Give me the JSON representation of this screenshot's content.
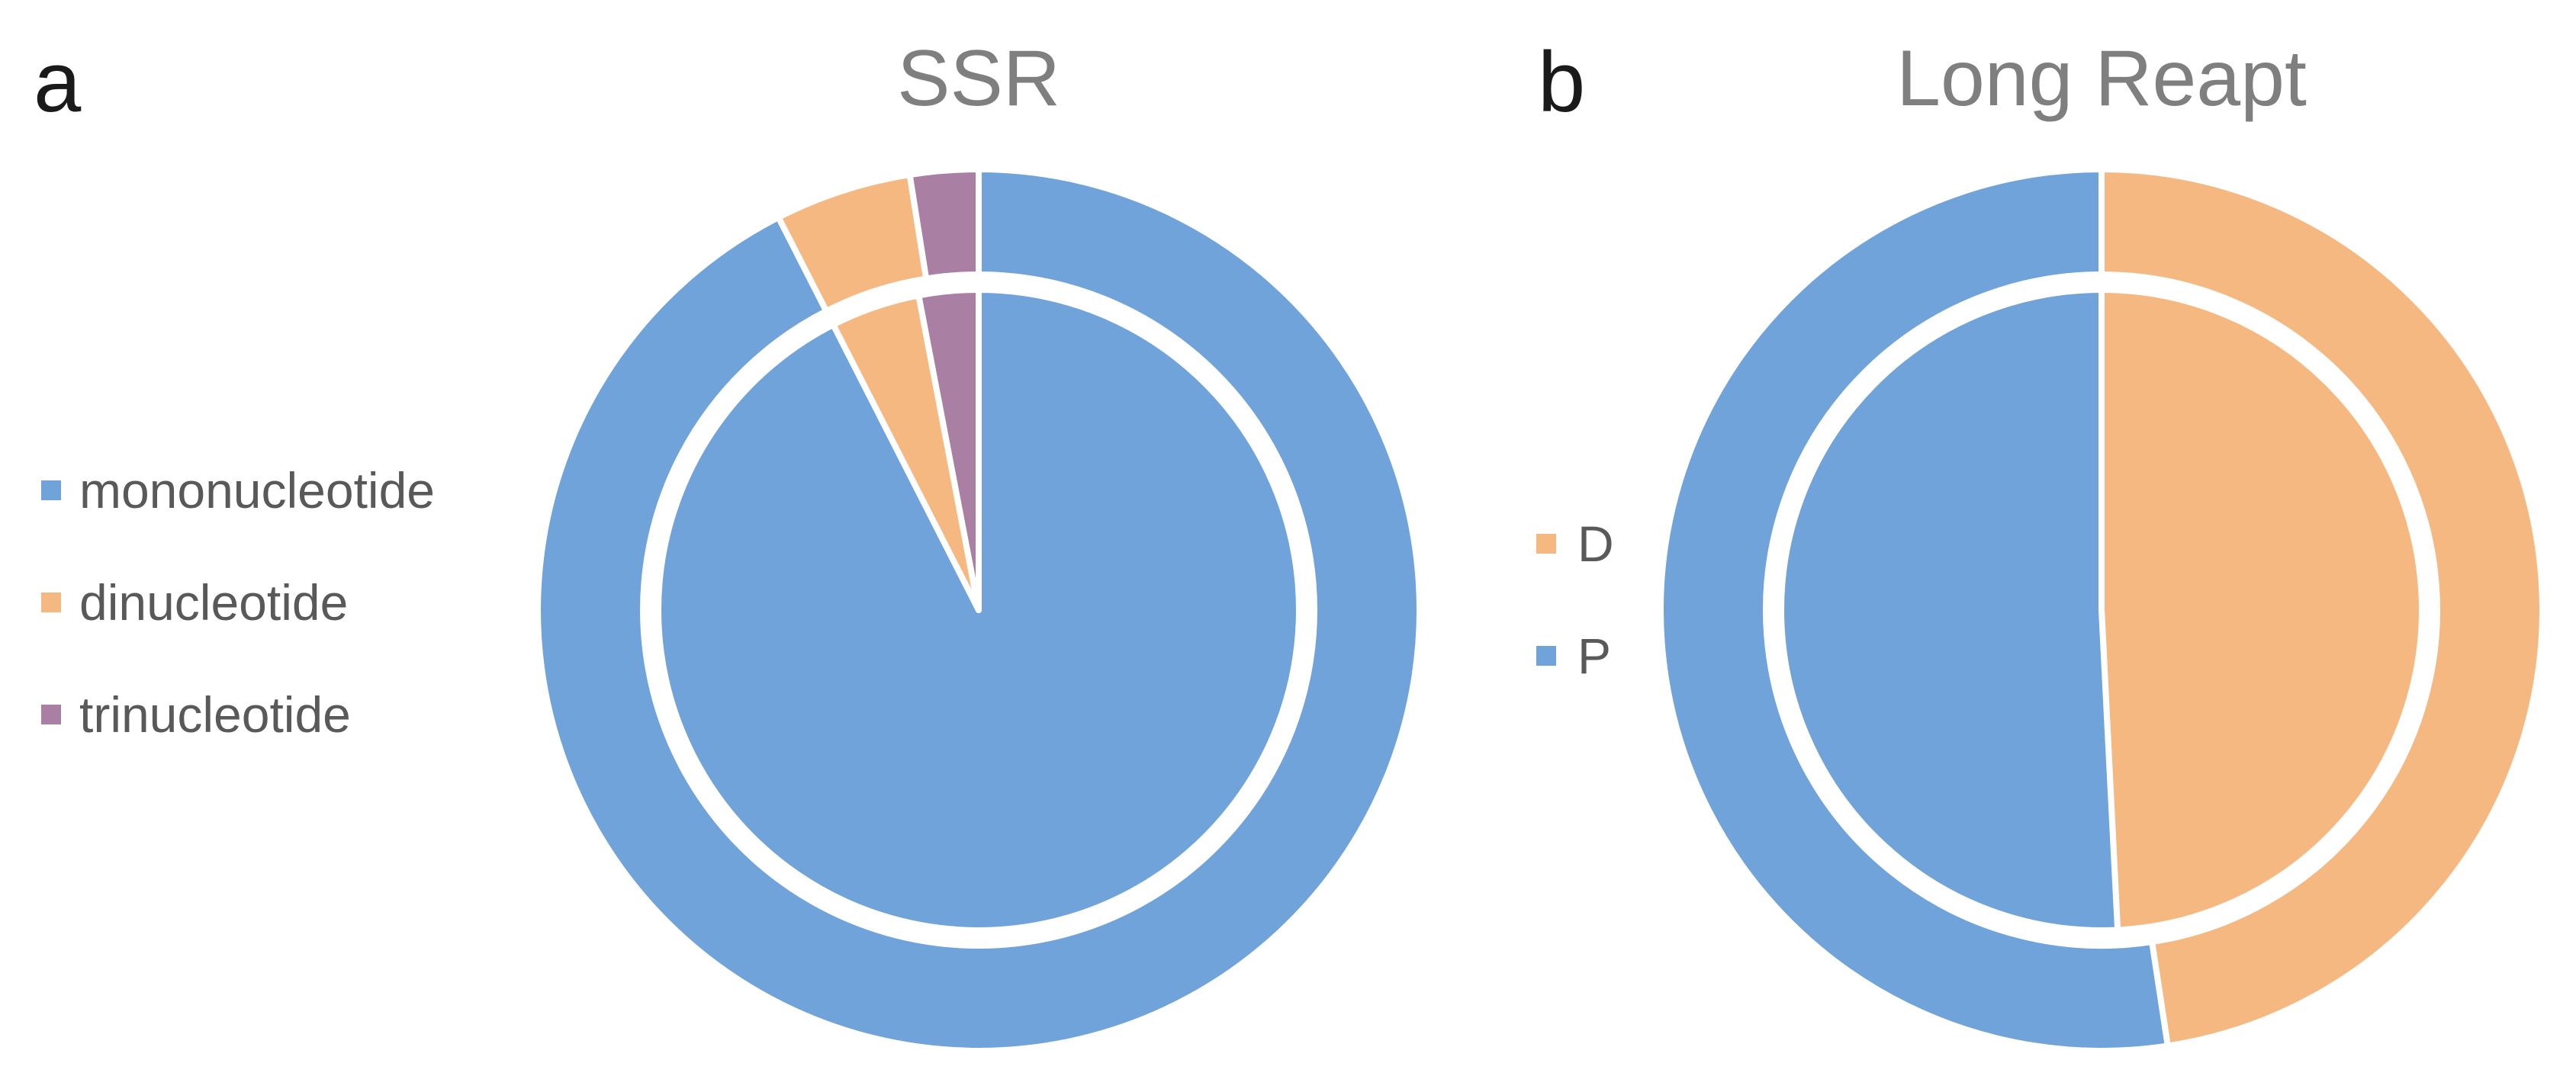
{
  "colors": {
    "blue": "#6fa3da",
    "orange": "#f5b880",
    "purple": "#a980a3",
    "separator": "#ffffff"
  },
  "chart_data": [
    {
      "type": "pie",
      "panel_label": "a",
      "title": "SSR",
      "legend": [
        "mononucleotide",
        "dinucleotide",
        "trinucleotide"
      ],
      "legend_colors": [
        "blue",
        "orange",
        "purple"
      ],
      "rings": [
        {
          "name": "outer",
          "values": [
            92.5,
            5.0,
            2.5
          ]
        },
        {
          "name": "inner",
          "values": [
            92.5,
            4.5,
            3.0
          ]
        }
      ]
    },
    {
      "type": "pie",
      "panel_label": "b",
      "title": "Long Reapt",
      "legend": [
        "D",
        "P"
      ],
      "legend_colors": [
        "orange",
        "blue"
      ],
      "rings": [
        {
          "name": "outer",
          "values": [
            47.6,
            52.4
          ]
        },
        {
          "name": "inner",
          "values": [
            49.2,
            50.8
          ]
        }
      ]
    }
  ]
}
